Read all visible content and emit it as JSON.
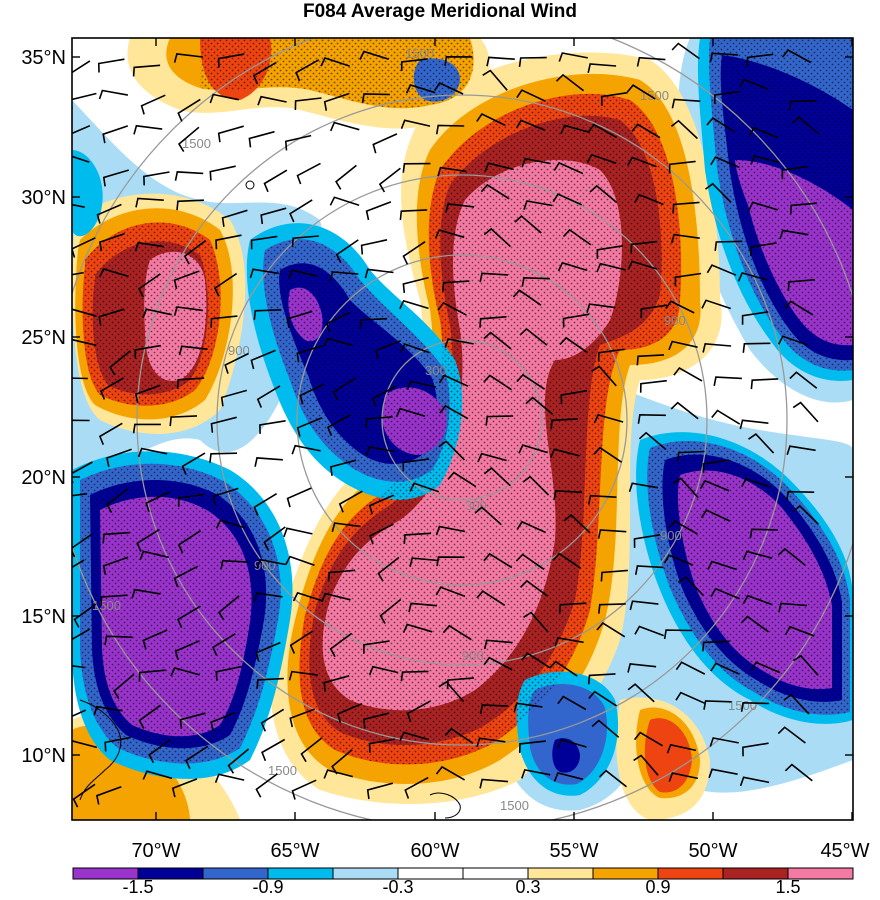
{
  "title": "F084 Average Meridional Wind",
  "colors": {
    "purple": "#9933cc",
    "navy": "#000099",
    "blue": "#3366cc",
    "cyan": "#00bbee",
    "lightblue": "#aaddf5",
    "white": "#ffffff",
    "lightyellow": "#ffe699",
    "orange": "#f5a300",
    "redorange": "#ee4411",
    "darkred": "#aa2222",
    "pink": "#f47aa3",
    "contour": "#999999"
  },
  "map": {
    "lon_range": [
      -73,
      -45
    ],
    "lat_range": [
      8,
      36
    ],
    "lon_ticks": [
      "70°W",
      "65°W",
      "60°W",
      "55°W",
      "50°W",
      "45°W"
    ],
    "lat_ticks": [
      "35°N",
      "30°N",
      "25°N",
      "20°N",
      "15°N",
      "10°N"
    ],
    "contour_labels": [
      "1500",
      "1500",
      "1500",
      "900",
      "900",
      "300",
      "300",
      "900",
      "1500",
      "1500",
      "900",
      "900",
      "1500",
      "1500"
    ]
  },
  "colorbar": {
    "labels": [
      "-1.5",
      "-0.9",
      "-0.3",
      "0.3",
      "0.9",
      "1.5"
    ],
    "bins": [
      "purple",
      "navy",
      "blue",
      "cyan",
      "lightblue",
      "white",
      "white",
      "lightyellow",
      "orange",
      "redorange",
      "darkred",
      "pink"
    ]
  }
}
